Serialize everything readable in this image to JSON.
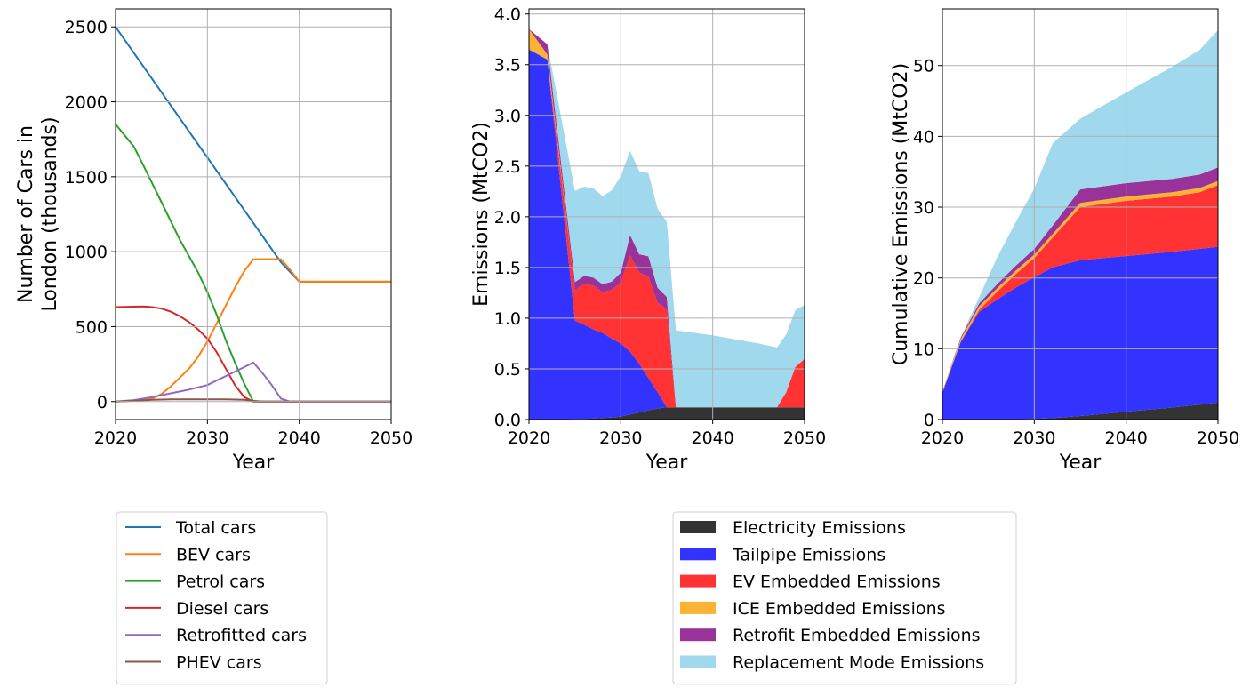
{
  "chart_data": [
    {
      "type": "line",
      "xlabel": "Year",
      "ylabel_lines": [
        "Number of Cars in",
        "London (thousands)"
      ],
      "xlim": [
        2020,
        2050
      ],
      "ylim": [
        -120,
        2620
      ],
      "xticks": [
        2020,
        2030,
        2040,
        2050
      ],
      "yticks": [
        0,
        500,
        1000,
        1500,
        2000,
        2500
      ],
      "grid": true,
      "legend_position": "bottom",
      "series": [
        {
          "name": "Total cars",
          "color": "#1f77b4",
          "x": [
            2020,
            2038,
            2040,
            2050
          ],
          "y": [
            2500,
            930,
            800,
            800
          ]
        },
        {
          "name": "BEV cars",
          "color": "#ff7f0e",
          "x": [
            2020,
            2022,
            2024,
            2025,
            2026,
            2027,
            2028,
            2029,
            2030,
            2031,
            2032,
            2033,
            2034,
            2035,
            2036,
            2037,
            2038,
            2039,
            2040,
            2050
          ],
          "y": [
            0,
            5,
            20,
            50,
            100,
            160,
            220,
            300,
            400,
            520,
            640,
            760,
            870,
            950,
            950,
            950,
            950,
            880,
            800,
            800
          ]
        },
        {
          "name": "Petrol cars",
          "color": "#2ca02c",
          "x": [
            2020,
            2022,
            2023,
            2025,
            2027,
            2029,
            2030,
            2031,
            2032,
            2033,
            2034,
            2035,
            2036,
            2050
          ],
          "y": [
            1850,
            1700,
            1580,
            1330,
            1080,
            860,
            730,
            580,
            410,
            260,
            120,
            0,
            0,
            0
          ]
        },
        {
          "name": "Diesel cars",
          "color": "#d62728",
          "x": [
            2020,
            2021,
            2023,
            2024,
            2025,
            2026,
            2027,
            2028,
            2029,
            2030,
            2031,
            2032,
            2033,
            2034,
            2035,
            2036,
            2050
          ],
          "y": [
            630,
            632,
            635,
            630,
            620,
            600,
            570,
            530,
            480,
            420,
            330,
            220,
            110,
            30,
            0,
            0,
            0
          ]
        },
        {
          "name": "Retrofitted cars",
          "color": "#9467bd",
          "x": [
            2020,
            2022,
            2024,
            2026,
            2028,
            2030,
            2032,
            2034,
            2035,
            2036,
            2037,
            2038,
            2039,
            2050
          ],
          "y": [
            0,
            10,
            30,
            55,
            80,
            110,
            170,
            230,
            260,
            190,
            110,
            20,
            0,
            0
          ]
        },
        {
          "name": "PHEV cars",
          "color": "#8c564b",
          "x": [
            2020,
            2022,
            2024,
            2026,
            2030,
            2032,
            2034,
            2035,
            2036,
            2050
          ],
          "y": [
            0,
            5,
            12,
            15,
            15,
            15,
            12,
            5,
            0,
            0
          ]
        }
      ]
    },
    {
      "type": "area",
      "stacked": true,
      "xlabel": "Year",
      "ylabel": "Emissions (MtCO2)",
      "xlim": [
        2020,
        2050
      ],
      "ylim": [
        0,
        4.05
      ],
      "xticks": [
        2020,
        2030,
        2040,
        2050
      ],
      "yticks": [
        0.0,
        0.5,
        1.0,
        1.5,
        2.0,
        2.5,
        3.0,
        3.5,
        4.0
      ],
      "grid": true,
      "legend_position": "bottom",
      "x": [
        2020,
        2022,
        2025,
        2026,
        2027,
        2028,
        2029,
        2030,
        2031,
        2032,
        2033,
        2034,
        2035,
        2036,
        2040,
        2045,
        2047,
        2048,
        2049,
        2050
      ],
      "series": [
        {
          "name": "Electricity Emissions",
          "color": "#333333",
          "values": [
            0.0,
            0.0,
            0.005,
            0.007,
            0.01,
            0.015,
            0.02,
            0.03,
            0.05,
            0.07,
            0.09,
            0.11,
            0.12,
            0.12,
            0.12,
            0.12,
            0.12,
            0.12,
            0.12,
            0.12
          ]
        },
        {
          "name": "Tailpipe Emissions",
          "color": "#3333ff",
          "values": [
            3.65,
            3.55,
            0.97,
            0.93,
            0.88,
            0.84,
            0.78,
            0.72,
            0.62,
            0.48,
            0.32,
            0.16,
            0.0,
            0.0,
            0.0,
            0.0,
            0.0,
            0.0,
            0.0,
            0.0
          ]
        },
        {
          "name": "EV Embedded Emissions",
          "color": "#ff3333",
          "values": [
            0.0,
            0.0,
            0.3,
            0.4,
            0.43,
            0.4,
            0.48,
            0.6,
            0.95,
            0.9,
            1.0,
            0.88,
            0.97,
            0.0,
            0.0,
            0.0,
            0.0,
            0.15,
            0.4,
            0.48
          ]
        },
        {
          "name": "ICE Embedded Emissions",
          "color": "#fbb235",
          "values": [
            0.2,
            0.05,
            0.0,
            0.0,
            0.0,
            0.0,
            0.0,
            0.0,
            0.0,
            0.0,
            0.0,
            0.0,
            0.0,
            0.0,
            0.0,
            0.0,
            0.0,
            0.0,
            0.0,
            0.0
          ]
        },
        {
          "name": "Retrofit Embedded Emissions",
          "color": "#993399",
          "values": [
            0.0,
            0.1,
            0.08,
            0.08,
            0.08,
            0.08,
            0.08,
            0.1,
            0.2,
            0.18,
            0.2,
            0.15,
            0.12,
            0.0,
            0.0,
            0.0,
            0.0,
            0.0,
            0.0,
            0.0
          ]
        },
        {
          "name": "Replacement Mode Emissions",
          "color": "#a0d8ee",
          "values": [
            0.0,
            0.0,
            0.9,
            0.88,
            0.88,
            0.87,
            0.9,
            0.95,
            0.83,
            0.82,
            0.82,
            0.78,
            0.74,
            0.76,
            0.71,
            0.63,
            0.59,
            0.57,
            0.56,
            0.53
          ]
        }
      ]
    },
    {
      "type": "area",
      "stacked": true,
      "xlabel": "Year",
      "ylabel": "Cumulative Emissions (MtCO2)",
      "xlim": [
        2020,
        2050
      ],
      "ylim": [
        0,
        58
      ],
      "xticks": [
        2020,
        2030,
        2040,
        2050
      ],
      "yticks": [
        0,
        10,
        20,
        30,
        40,
        50
      ],
      "grid": true,
      "legend_position": "bottom",
      "x": [
        2020,
        2022,
        2024,
        2026,
        2028,
        2030,
        2032,
        2035,
        2040,
        2045,
        2048,
        2050
      ],
      "series": [
        {
          "name": "Electricity Emissions",
          "color": "#333333",
          "values": [
            0.0,
            0.0,
            0.0,
            0.0,
            0.05,
            0.1,
            0.2,
            0.5,
            1.1,
            1.7,
            2.1,
            2.4
          ]
        },
        {
          "name": "Tailpipe Emissions",
          "color": "#3333ff",
          "values": [
            3.8,
            11.0,
            15.2,
            17.0,
            18.6,
            20.0,
            21.3,
            22.0,
            22.0,
            22.0,
            22.0,
            22.0
          ]
        },
        {
          "name": "EV Embedded Emissions",
          "color": "#ff3333",
          "values": [
            0.0,
            0.0,
            0.3,
            1.1,
            1.9,
            2.7,
            4.2,
            7.5,
            7.8,
            7.8,
            8.0,
            8.7
          ]
        },
        {
          "name": "ICE Embedded Emissions",
          "color": "#fbb235",
          "values": [
            0.2,
            0.4,
            0.5,
            0.5,
            0.5,
            0.5,
            0.5,
            0.6,
            0.6,
            0.6,
            0.6,
            0.6
          ]
        },
        {
          "name": "Retrofit Embedded Emissions",
          "color": "#993399",
          "values": [
            0.0,
            0.2,
            0.4,
            0.6,
            0.7,
            0.8,
            1.2,
            1.9,
            1.9,
            1.9,
            1.9,
            1.9
          ]
        },
        {
          "name": "Replacement Mode Emissions",
          "color": "#a0d8ee",
          "values": [
            0.0,
            0.0,
            0.9,
            3.8,
            6.2,
            8.5,
            11.6,
            10.0,
            12.8,
            15.8,
            17.6,
            19.4
          ]
        }
      ]
    }
  ]
}
